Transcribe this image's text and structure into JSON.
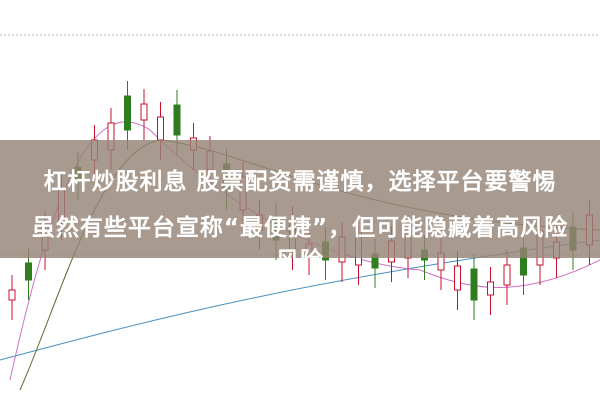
{
  "headline": {
    "line1": "杠杆炒股利息 股票配资需谨慎，选择平台要警惕",
    "line2": "虽然有些平台宣称“最便捷”，但可能隐藏着高风险",
    "line3": "风险"
  },
  "colors": {
    "up": "#c8102e",
    "down": "#2e7d1e",
    "banner": "#968476"
  }
}
